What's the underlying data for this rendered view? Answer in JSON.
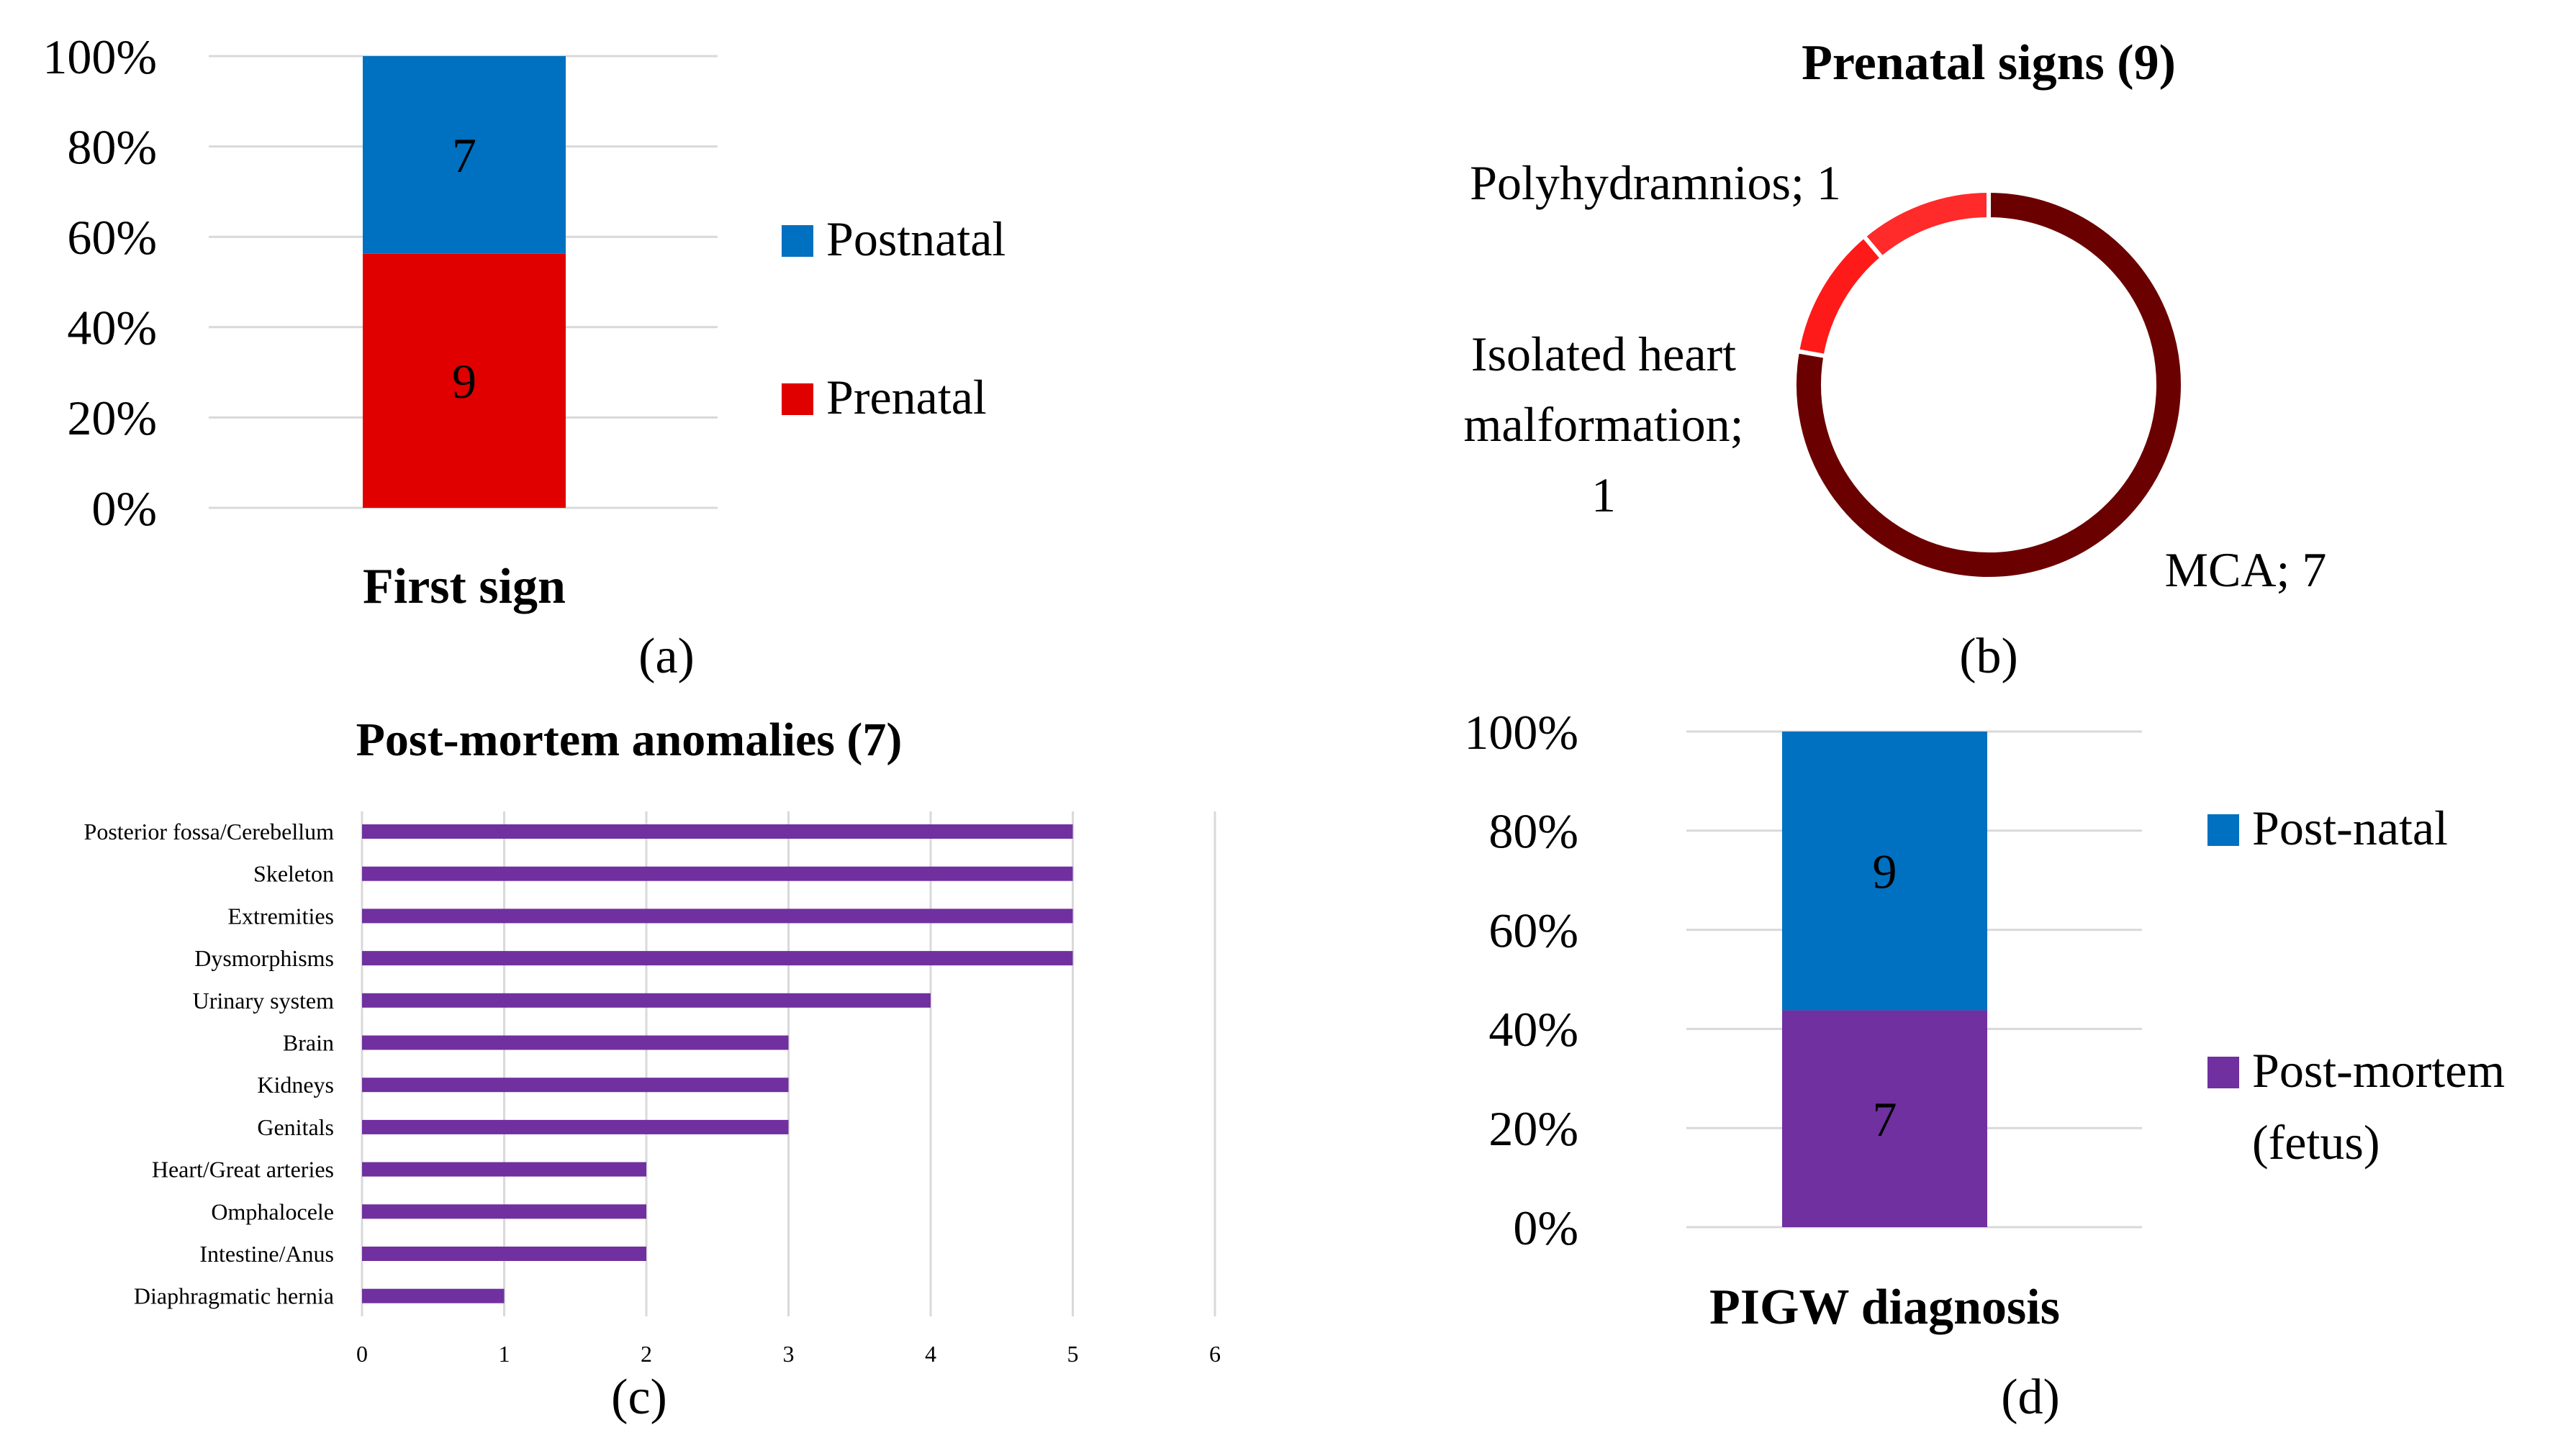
{
  "panels": {
    "a": "(a)",
    "b": "(b)",
    "c": "(c)",
    "d": "(d)"
  },
  "colors": {
    "postnatal_blue": "#0070c0",
    "prenatal_red": "#e00000",
    "mca_dark_red": "#6b0000",
    "heart_red": "#ff1a1a",
    "poly_red": "#ff2a2a",
    "purple": "#7030a0",
    "grid": "#d9d9d9"
  },
  "chart_data": [
    {
      "id": "a",
      "type": "bar",
      "stacked": "percent",
      "categories": [
        "First sign"
      ],
      "series": [
        {
          "name": "Prenatal",
          "values": [
            9
          ],
          "data_labels": [
            "9"
          ],
          "color": "#e00000"
        },
        {
          "name": "Postnatal",
          "values": [
            7
          ],
          "data_labels": [
            "7"
          ],
          "color": "#0070c0"
        }
      ],
      "yticks": [
        "0%",
        "20%",
        "40%",
        "60%",
        "80%",
        "100%"
      ],
      "ylim": [
        0,
        100
      ],
      "grid": true,
      "legend": {
        "placement": "right",
        "entries": [
          "Postnatal",
          "Prenatal"
        ]
      }
    },
    {
      "id": "b",
      "type": "pie",
      "donut": true,
      "title": "Prenatal signs (9)",
      "slices": [
        {
          "label": "MCA; 7",
          "value": 7,
          "color": "#6b0000"
        },
        {
          "label_lines": [
            "Isolated heart",
            "malformation;",
            "1"
          ],
          "value": 1,
          "color": "#ff1a1a"
        },
        {
          "label": "Polyhydramnios; 1",
          "value": 1,
          "color": "#ff2a2a"
        }
      ]
    },
    {
      "id": "c",
      "type": "bar",
      "orientation": "horizontal",
      "title": "Post-mortem anomalies (7)",
      "categories": [
        "Posterior fossa/Cerebellum",
        "Skeleton",
        "Extremities",
        "Dysmorphisms",
        "Urinary system",
        "Brain",
        "Kidneys",
        "Genitals",
        "Heart/Great arteries",
        "Omphalocele",
        "Intestine/Anus",
        "Diaphragmatic hernia"
      ],
      "values": [
        5,
        5,
        5,
        5,
        4,
        3,
        3,
        3,
        2,
        2,
        2,
        1
      ],
      "color": "#7030a0",
      "xlim": [
        0,
        6
      ],
      "xticks": [
        "0",
        "1",
        "2",
        "3",
        "4",
        "5",
        "6"
      ],
      "grid": true
    },
    {
      "id": "d",
      "type": "bar",
      "stacked": "percent",
      "categories": [
        "PIGW diagnosis"
      ],
      "series": [
        {
          "name": "Post-mortem (fetus)",
          "legend_lines": [
            "Post-mortem",
            "(fetus)"
          ],
          "values": [
            7
          ],
          "data_labels": [
            "7"
          ],
          "color": "#7030a0"
        },
        {
          "name": "Post-natal",
          "legend_lines": [
            "Post-natal"
          ],
          "values": [
            9
          ],
          "data_labels": [
            "9"
          ],
          "color": "#0070c0"
        }
      ],
      "yticks": [
        "0%",
        "20%",
        "40%",
        "60%",
        "80%",
        "100%"
      ],
      "ylim": [
        0,
        100
      ],
      "grid": true,
      "legend": {
        "placement": "right"
      }
    }
  ]
}
